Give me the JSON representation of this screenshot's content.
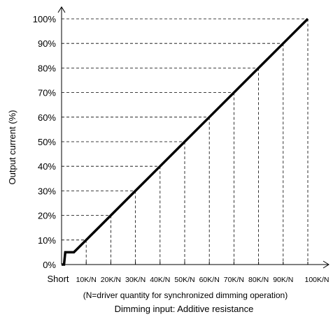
{
  "chart_data": {
    "type": "line",
    "ylabel": "Output current (%)",
    "xlabel": "Dimming input: Additive resistance",
    "note": "(N=driver quantity for synchronized dimming operation)",
    "x_tick_labels": [
      "Short",
      "10K/N",
      "20K/N",
      "30K/N",
      "40K/N",
      "50K/N",
      "60K/N",
      "70K/N",
      "80K/N",
      "90K/N",
      "100K/N"
    ],
    "y_tick_labels": [
      "0%",
      "10%",
      "20%",
      "30%",
      "40%",
      "50%",
      "60%",
      "70%",
      "80%",
      "90%",
      "100%"
    ],
    "x_unit_suffix": "K/N",
    "xlim": [
      0,
      100
    ],
    "ylim": [
      0,
      100
    ],
    "grid": "dashed",
    "series": [
      {
        "x": [
          0,
          1,
          1.5,
          5,
          10,
          20,
          30,
          40,
          50,
          60,
          70,
          80,
          90,
          100
        ],
        "y": [
          0,
          0,
          5,
          5,
          10,
          20,
          30,
          40,
          50,
          60,
          70,
          80,
          90,
          100
        ]
      }
    ]
  }
}
